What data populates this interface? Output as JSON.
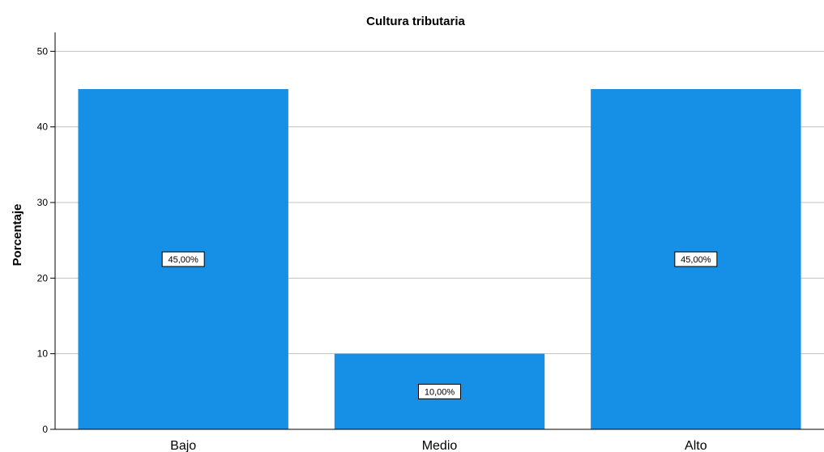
{
  "chart_data": {
    "type": "bar",
    "title": "Cultura tributaria",
    "xlabel": "",
    "ylabel": "Porcentaje",
    "categories": [
      "Bajo",
      "Medio",
      "Alto"
    ],
    "values": [
      45,
      10,
      45
    ],
    "data_labels": [
      "45,00%",
      "10,00%",
      "45,00%"
    ],
    "ylim": [
      0,
      52.5
    ],
    "yticks": [
      "0",
      "10",
      "20",
      "30",
      "40",
      "50"
    ],
    "ytick_values": [
      0,
      10,
      20,
      30,
      40,
      50
    ],
    "grid": true,
    "bar_color": "#1590e6",
    "grid_color": "#c0c0c0"
  }
}
